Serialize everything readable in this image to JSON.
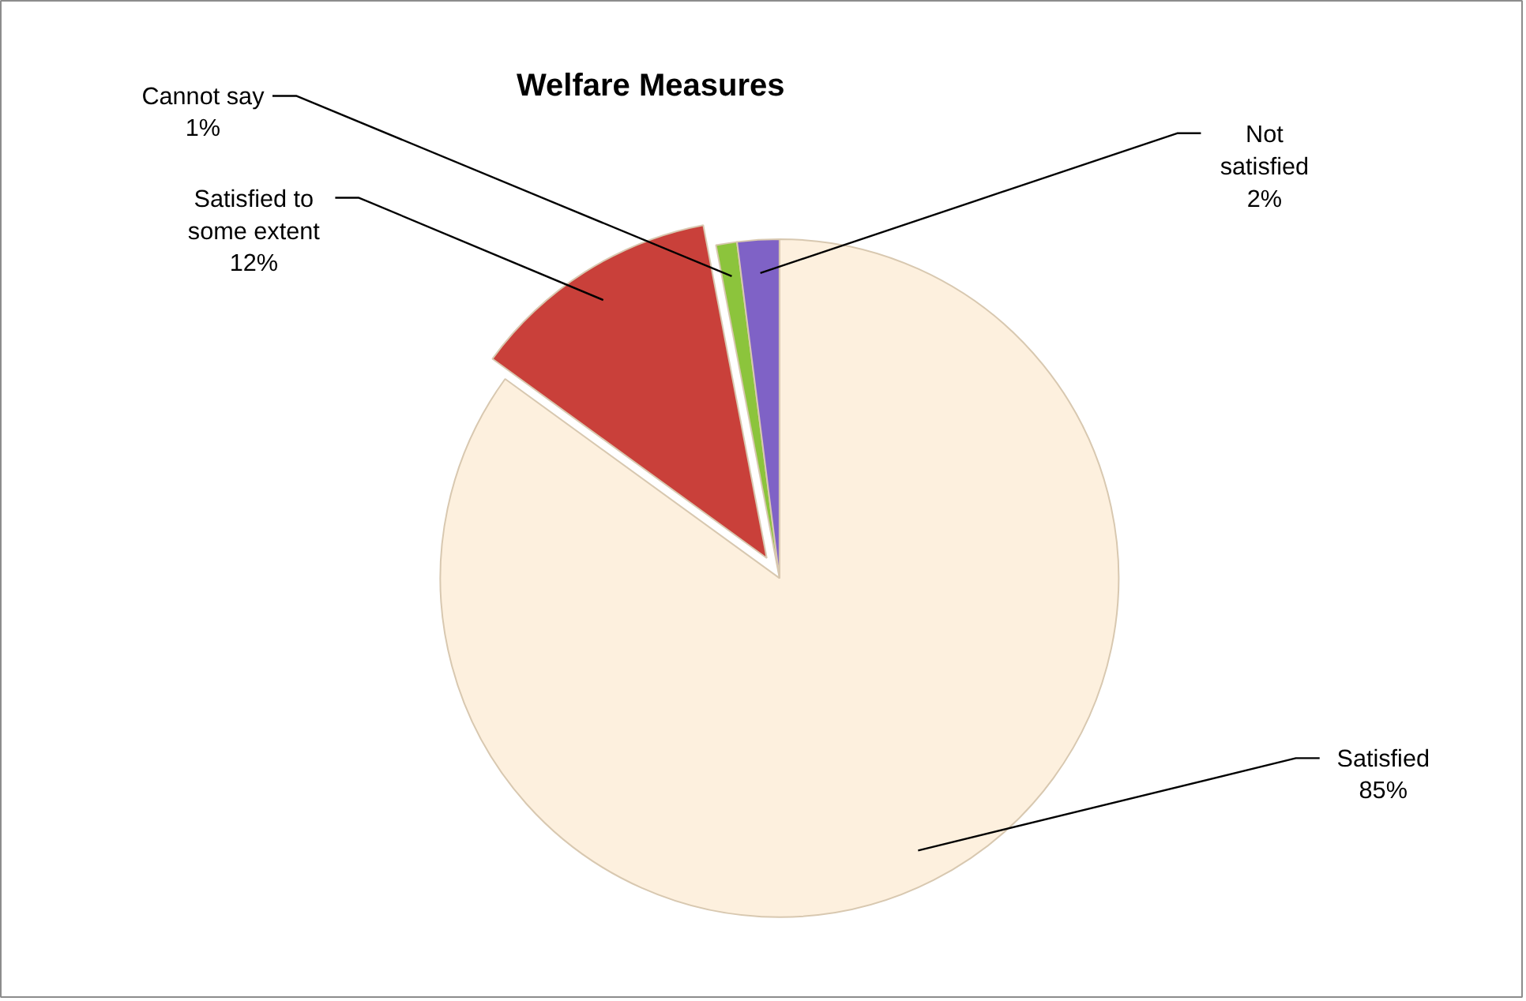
{
  "chart_data": {
    "type": "pie",
    "title": "Welfare Measures",
    "categories": [
      "Satisfied",
      "Satisfied to some extent",
      "Cannot say",
      "Not satisfied"
    ],
    "values": [
      85,
      12,
      1,
      2
    ],
    "colors": [
      "#fdf0de",
      "#c9403a",
      "#8cc43c",
      "#7f62c6"
    ],
    "value_labels": [
      "85%",
      "12%",
      "1%",
      "2%"
    ]
  }
}
